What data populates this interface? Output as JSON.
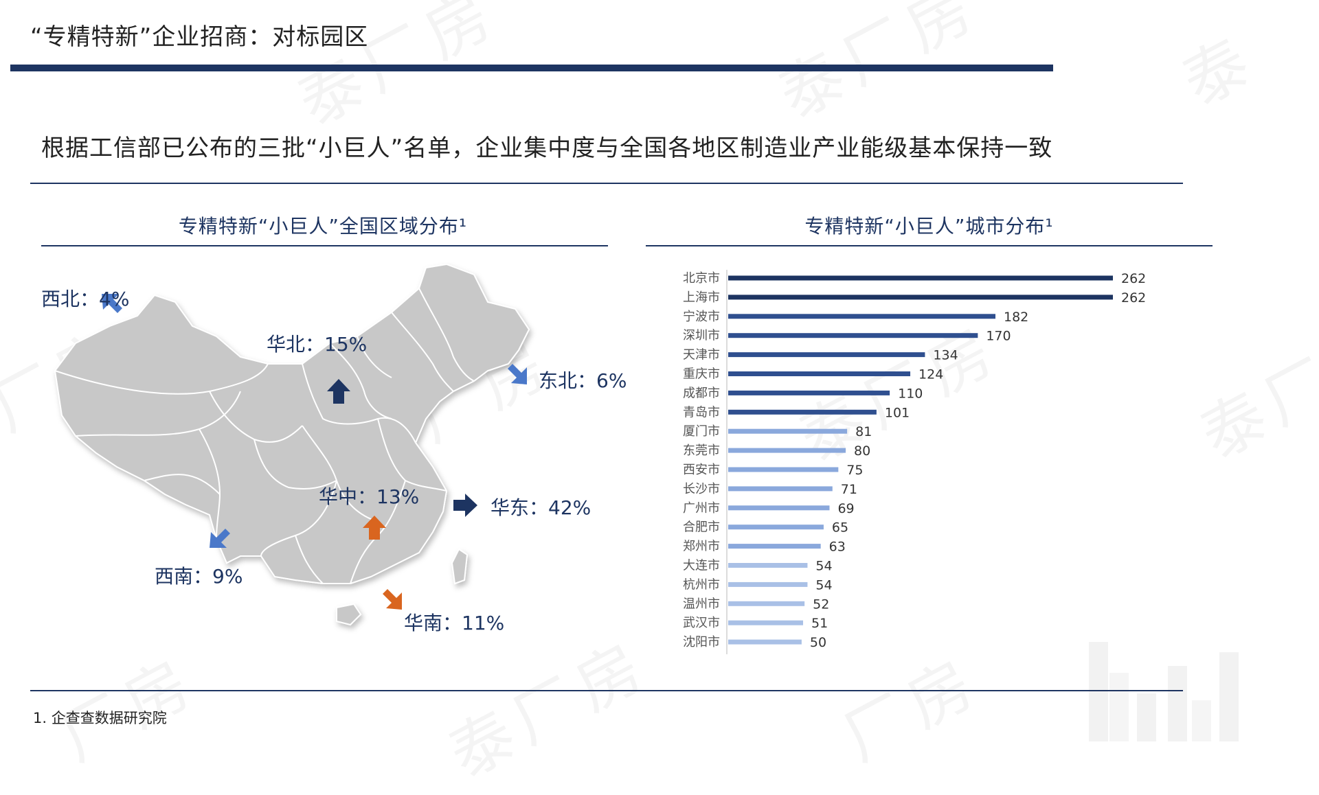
{
  "header": {
    "title": "“专精特新”企业招商：对标园区"
  },
  "subtitle": "根据工信部已公布的三批“小巨人”名单，企业集中度与全国各地区制造业产业能级基本保持一致",
  "map_section": {
    "title": "专精特新“小巨人”全国区域分布¹",
    "regions": [
      {
        "name": "西北",
        "value": "4%"
      },
      {
        "name": "华北",
        "value": "15%"
      },
      {
        "name": "东北",
        "value": "6%"
      },
      {
        "name": "华中",
        "value": "13%"
      },
      {
        "name": "华东",
        "value": "42%"
      },
      {
        "name": "西南",
        "value": "9%"
      },
      {
        "name": "华南",
        "value": "11%"
      }
    ],
    "colors": {
      "map_fill": "#c8c8c8",
      "map_border": "#ffffff",
      "arrow_blue": "#4a78c9",
      "arrow_navy": "#1d3461",
      "arrow_orange": "#d9651f"
    }
  },
  "chart_section": {
    "title": "专精特新“小巨人”城市分布¹"
  },
  "chart_data": {
    "type": "bar",
    "orientation": "horizontal",
    "categories": [
      "北京市",
      "上海市",
      "宁波市",
      "深圳市",
      "天津市",
      "重庆市",
      "成都市",
      "青岛市",
      "厦门市",
      "东莞市",
      "西安市",
      "长沙市",
      "广州市",
      "合肥市",
      "郑州市",
      "大连市",
      "杭州市",
      "温州市",
      "武汉市",
      "沈阳市"
    ],
    "values": [
      262,
      262,
      182,
      170,
      134,
      124,
      110,
      101,
      81,
      80,
      75,
      71,
      69,
      65,
      63,
      54,
      54,
      52,
      51,
      50
    ],
    "xlim": [
      0,
      262
    ],
    "colors": {
      "top2": "#1d3461",
      "mid": "#2f4f8f",
      "light": "#8aa8dc",
      "lighter": "#a9c0e6"
    }
  },
  "footer": {
    "note": "1. 企查查数据研究院"
  }
}
